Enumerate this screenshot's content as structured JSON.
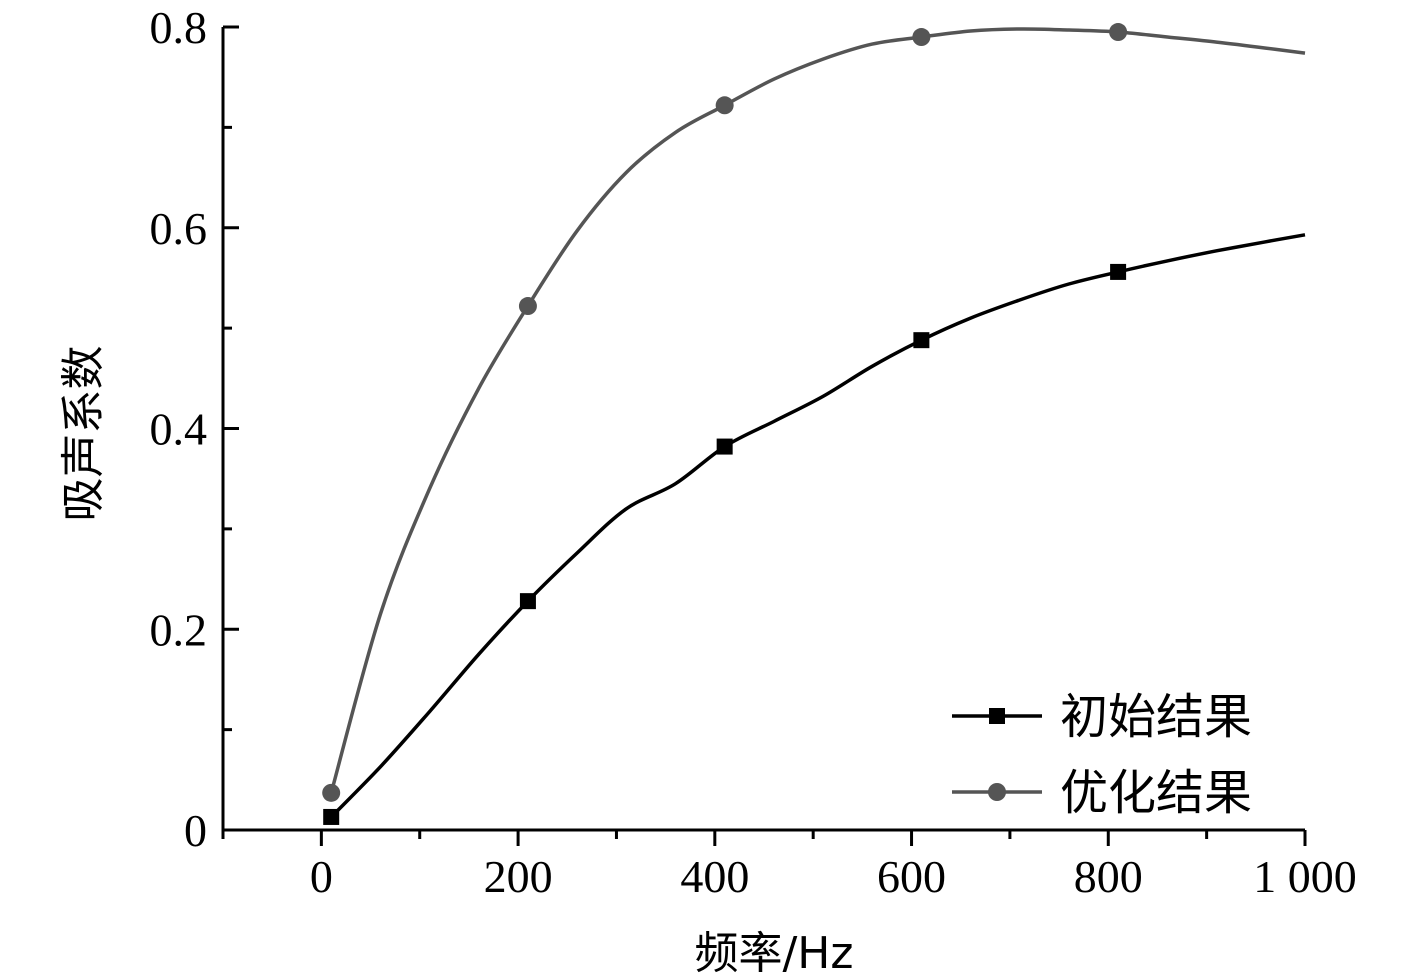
{
  "chart_data": {
    "type": "line",
    "xlabel": "频率/Hz",
    "ylabel": "吸声系数",
    "xlim": [
      -100,
      1000
    ],
    "ylim": [
      0,
      0.8
    ],
    "x_ticks": [
      0,
      200,
      400,
      600,
      800,
      1000
    ],
    "x_tick_labels": [
      "0",
      "200",
      "400",
      "600",
      "800",
      "1 000"
    ],
    "y_ticks": [
      0,
      0.2,
      0.4,
      0.6,
      0.8
    ],
    "y_tick_labels": [
      "0",
      "0.2",
      "0.4",
      "0.6",
      "0.8"
    ],
    "legend_position": "bottom-right",
    "grid": false,
    "series": [
      {
        "name": "初始结果",
        "color": "#000000",
        "marker": "square",
        "x": [
          10,
          60,
          110,
          160,
          210,
          260,
          310,
          360,
          410,
          460,
          510,
          560,
          610,
          660,
          710,
          760,
          810,
          860,
          910,
          960,
          1000
        ],
        "y": [
          0.013,
          0.063,
          0.118,
          0.175,
          0.228,
          0.276,
          0.32,
          0.345,
          0.382,
          0.407,
          0.432,
          0.462,
          0.488,
          0.51,
          0.528,
          0.544,
          0.556,
          0.567,
          0.577,
          0.586,
          0.593
        ],
        "marker_x": [
          10,
          210,
          410,
          610,
          810
        ],
        "marker_y": [
          0.013,
          0.228,
          0.382,
          0.488,
          0.556
        ]
      },
      {
        "name": "优化结果",
        "color": "#555555",
        "marker": "circle",
        "x": [
          10,
          60,
          110,
          160,
          210,
          260,
          310,
          360,
          410,
          460,
          510,
          560,
          610,
          660,
          710,
          760,
          810,
          860,
          910,
          960,
          1000
        ],
        "y": [
          0.037,
          0.215,
          0.34,
          0.44,
          0.522,
          0.597,
          0.655,
          0.695,
          0.722,
          0.748,
          0.768,
          0.783,
          0.79,
          0.796,
          0.798,
          0.797,
          0.795,
          0.79,
          0.785,
          0.779,
          0.774
        ],
        "marker_x": [
          10,
          210,
          410,
          610,
          810
        ],
        "marker_y": [
          0.037,
          0.522,
          0.722,
          0.79,
          0.795
        ]
      }
    ]
  }
}
